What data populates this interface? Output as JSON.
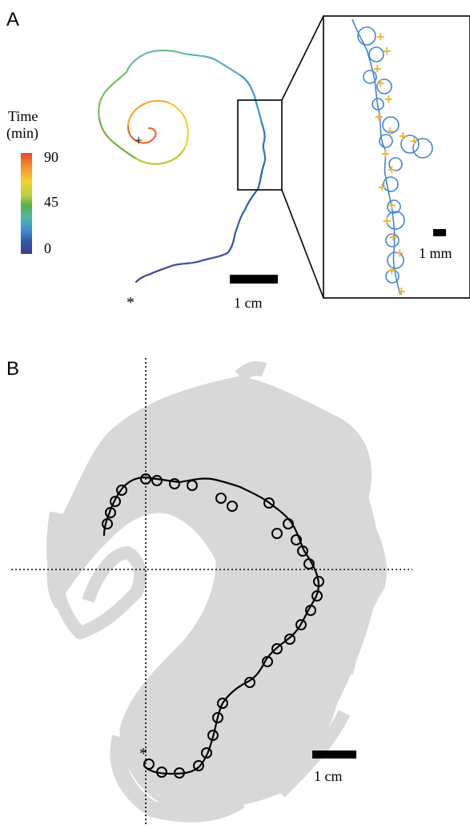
{
  "panelA": {
    "letter": "A",
    "colorbar": {
      "title_line1": "Time",
      "title_line2": "(min)",
      "ticks": [
        "90",
        "45",
        "0"
      ],
      "gradient_colors": [
        "#e8452b",
        "#f28a2e",
        "#f6d12f",
        "#b7d23a",
        "#57b14a",
        "#4fb8a7",
        "#3f8fd0",
        "#2f58a8",
        "#413b8f"
      ]
    },
    "start_marker": "*",
    "end_marker": "+",
    "scalebar_label": "1 cm",
    "inset": {
      "scalebar_label": "1 mm",
      "path_color": "#3f86d2",
      "marker_color": "#f2b942"
    }
  },
  "panelB": {
    "letter": "B",
    "start_marker": "*",
    "scalebar_label": "1 cm",
    "background_color": "#d8d8d8",
    "highlight_color": "#000000"
  }
}
